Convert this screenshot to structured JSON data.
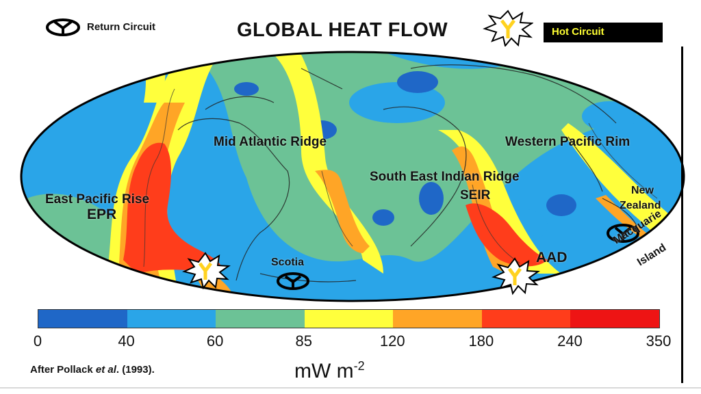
{
  "title": "GLOBAL HEAT FLOW",
  "legend": {
    "return_circuit": "Return Circuit",
    "hot_circuit": "Hot Circuit"
  },
  "map_labels": {
    "mid_atlantic_ridge": "Mid Atlantic Ridge",
    "western_pacific_rim": "Western Pacific Rim",
    "east_pacific_rise": "East Pacific Rise",
    "epr": "EPR",
    "south_east_indian_ridge": "South East Indian Ridge",
    "seir": "SEIR",
    "new": "New",
    "zealand": "Zealand",
    "macquarie": "Macquarie",
    "island": "Island",
    "scotia": "Scotia",
    "aad": "AAD"
  },
  "scale": {
    "bins": [
      {
        "from": 0,
        "to": 40,
        "color": "#1f67c7"
      },
      {
        "from": 40,
        "to": 60,
        "color": "#2aa5e8"
      },
      {
        "from": 60,
        "to": 85,
        "color": "#6cc296"
      },
      {
        "from": 85,
        "to": 120,
        "color": "#ffff3c"
      },
      {
        "from": 120,
        "to": 180,
        "color": "#ffa526"
      },
      {
        "from": 180,
        "to": 240,
        "color": "#ff3d1b"
      },
      {
        "from": 240,
        "to": 350,
        "color": "#ee1414"
      }
    ],
    "ticks": [
      "0",
      "40",
      "60",
      "85",
      "120",
      "180",
      "240",
      "350"
    ],
    "unit_base": "mW m",
    "unit_exp": "-2"
  },
  "source": {
    "prefix": "After Pollack ",
    "etal": "et al",
    "suffix": ". (1993)."
  },
  "colors": {
    "ocean_low": "#1f67c7",
    "blue": "#2aa5e8",
    "green": "#6cc296",
    "yellow": "#ffff3c",
    "orange": "#ffa526",
    "red": "#ff3d1b"
  }
}
